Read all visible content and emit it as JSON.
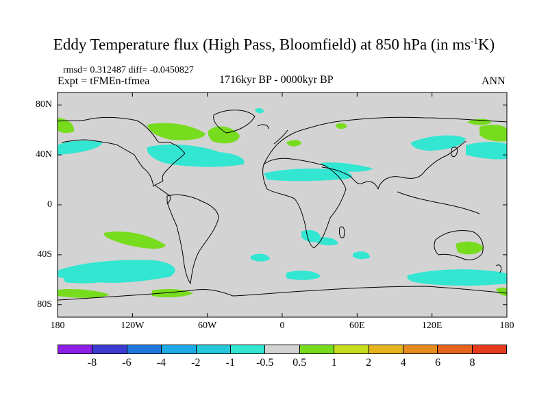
{
  "title": {
    "main": "Eddy Temperature flux (High Pass, Bloomfield) at 850 hPa (in ms",
    "sup": "-1",
    "tail": "K)"
  },
  "stats": {
    "line": "rmsd= 0.312487 diff= -0.0450827",
    "expt": "Expt = tFMEn-tfmea",
    "period": "1716kyr BP - 0000kyr BP",
    "season": "ANN"
  },
  "axes": {
    "x_ticks": [
      "180",
      "120W",
      "60W",
      "0",
      "60E",
      "120E",
      "180"
    ],
    "y_ticks": [
      "80N",
      "40N",
      "0",
      "40S",
      "80S"
    ]
  },
  "colorbar": {
    "colors": [
      "#8c1ee6",
      "#3c3cd2",
      "#1e78dc",
      "#1eaae6",
      "#28c8dc",
      "#32e6d2",
      "#d3d3d3",
      "#78dc1e",
      "#c8dc1e",
      "#e6b41e",
      "#e68c1e",
      "#e6641e",
      "#e63c1e"
    ],
    "labels": [
      "-8",
      "-6",
      "-4",
      "-2",
      "-1",
      "-0.5",
      "0.5",
      "1",
      "2",
      "4",
      "6",
      "8"
    ]
  },
  "colors": {
    "ocean": "#d3d3d3",
    "positive": "#78dc1e",
    "negative": "#32e6d2",
    "coast": "#000000"
  }
}
